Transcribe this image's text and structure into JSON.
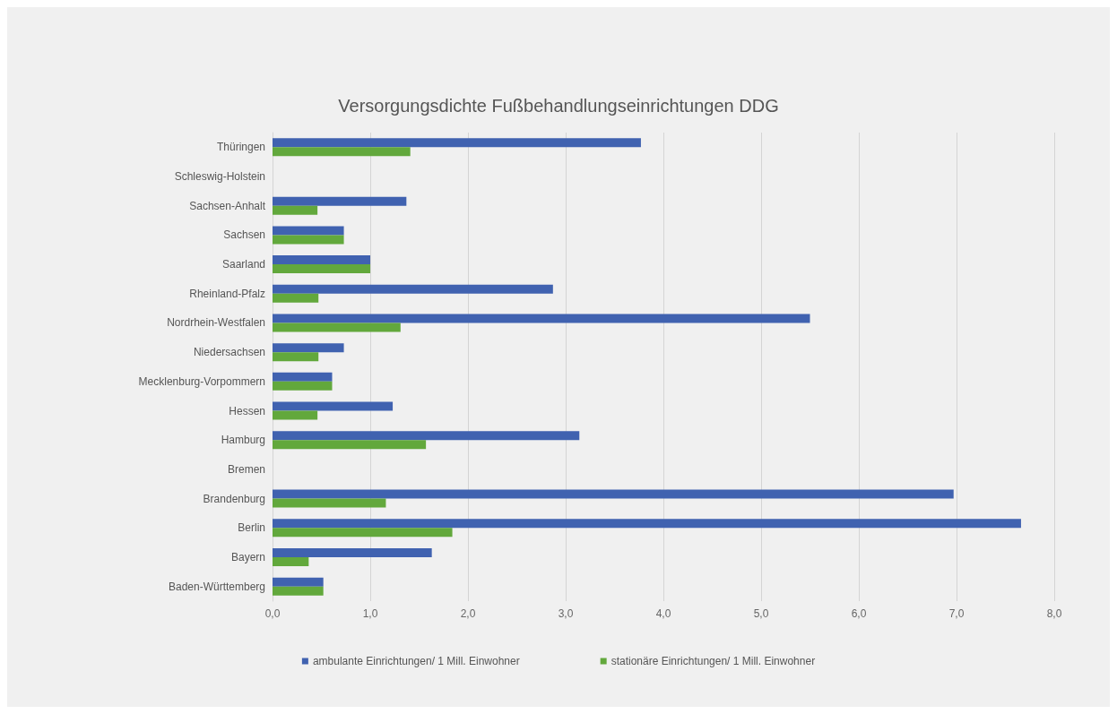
{
  "chart_data": {
    "type": "bar",
    "orientation": "horizontal",
    "title": "Versorgungsdichte Fußbehandlungseinrichtungen DDG",
    "categories": [
      "Thüringen",
      "Schleswig-Holstein",
      "Sachsen-Anhalt",
      "Sachsen",
      "Saarland",
      "Rheinland-Pfalz",
      "Nordrhein-Westfalen",
      "Niedersachsen",
      "Mecklenburg-Vorpommern",
      "Hessen",
      "Hamburg",
      "Bremen",
      "Brandenburg",
      "Berlin",
      "Bayern",
      "Baden-Württemberg"
    ],
    "series": [
      {
        "name": "ambulante Einrichtungen/ 1 Mill. Einwohner",
        "color": "#4062b0",
        "values": [
          3.77,
          null,
          1.37,
          0.73,
          1.0,
          2.87,
          5.5,
          0.73,
          0.61,
          1.23,
          3.14,
          null,
          6.97,
          7.66,
          1.63,
          0.52
        ]
      },
      {
        "name": "stationäre Einrichtungen/ 1 Mill. Einwohner",
        "color": "#62a83c",
        "values": [
          1.41,
          null,
          0.46,
          0.73,
          1.0,
          0.47,
          1.31,
          0.47,
          0.61,
          0.46,
          1.57,
          null,
          1.16,
          1.84,
          0.37,
          0.52
        ]
      }
    ],
    "xlim": [
      0,
      8
    ],
    "xticks": [
      {
        "value": 0,
        "label": "0,0"
      },
      {
        "value": 1,
        "label": "1,0"
      },
      {
        "value": 2,
        "label": "2,0"
      },
      {
        "value": 3,
        "label": "3,0"
      },
      {
        "value": 4,
        "label": "4,0"
      },
      {
        "value": 5,
        "label": "5,0"
      },
      {
        "value": 6,
        "label": "6,0"
      },
      {
        "value": 7,
        "label": "7,0"
      },
      {
        "value": 8,
        "label": "8,0"
      }
    ],
    "grid": "x",
    "legend": "bottom"
  }
}
